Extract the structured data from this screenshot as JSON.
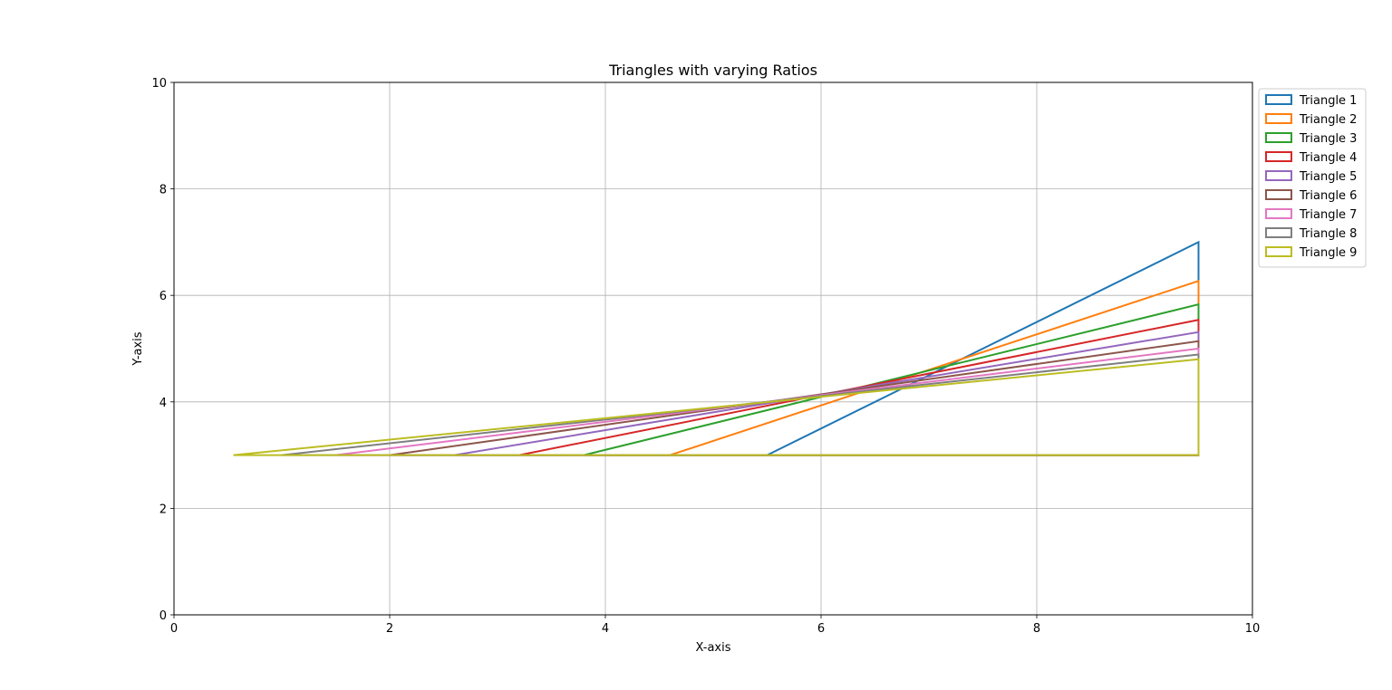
{
  "chart_data": {
    "type": "line",
    "title": "Triangles with varying Ratios",
    "xlabel": "X-axis",
    "ylabel": "Y-axis",
    "xlim": [
      0,
      10
    ],
    "ylim": [
      0,
      10
    ],
    "xticks": [
      0,
      2,
      4,
      6,
      8,
      10
    ],
    "yticks": [
      0,
      2,
      4,
      6,
      8,
      10
    ],
    "grid": true,
    "legend_position": "outside-top-right",
    "series": [
      {
        "name": "Triangle 1",
        "color": "#1f77b4",
        "vertices": [
          [
            5.5,
            3.0
          ],
          [
            9.5,
            3.0
          ],
          [
            9.5,
            7.0
          ]
        ]
      },
      {
        "name": "Triangle 2",
        "color": "#ff7f0e",
        "vertices": [
          [
            4.6,
            3.0
          ],
          [
            9.5,
            3.0
          ],
          [
            9.5,
            6.27
          ]
        ]
      },
      {
        "name": "Triangle 3",
        "color": "#2ca02c",
        "vertices": [
          [
            3.8,
            3.0
          ],
          [
            9.5,
            3.0
          ],
          [
            9.5,
            5.83
          ]
        ]
      },
      {
        "name": "Triangle 4",
        "color": "#d62728",
        "vertices": [
          [
            3.2,
            3.0
          ],
          [
            9.5,
            3.0
          ],
          [
            9.5,
            5.54
          ]
        ]
      },
      {
        "name": "Triangle 5",
        "color": "#9467bd",
        "vertices": [
          [
            2.6,
            3.0
          ],
          [
            9.5,
            3.0
          ],
          [
            9.5,
            5.31
          ]
        ]
      },
      {
        "name": "Triangle 6",
        "color": "#8c564b",
        "vertices": [
          [
            2.0,
            3.0
          ],
          [
            9.5,
            3.0
          ],
          [
            9.5,
            5.14
          ]
        ]
      },
      {
        "name": "Triangle 7",
        "color": "#e377c2",
        "vertices": [
          [
            1.5,
            3.0
          ],
          [
            9.5,
            3.0
          ],
          [
            9.5,
            5.0
          ]
        ]
      },
      {
        "name": "Triangle 8",
        "color": "#7f7f7f",
        "vertices": [
          [
            1.0,
            3.0
          ],
          [
            9.5,
            3.0
          ],
          [
            9.5,
            4.89
          ]
        ]
      },
      {
        "name": "Triangle 9",
        "color": "#bcbd22",
        "vertices": [
          [
            0.55,
            3.0
          ],
          [
            9.5,
            3.0
          ],
          [
            9.5,
            4.8
          ]
        ]
      }
    ]
  }
}
